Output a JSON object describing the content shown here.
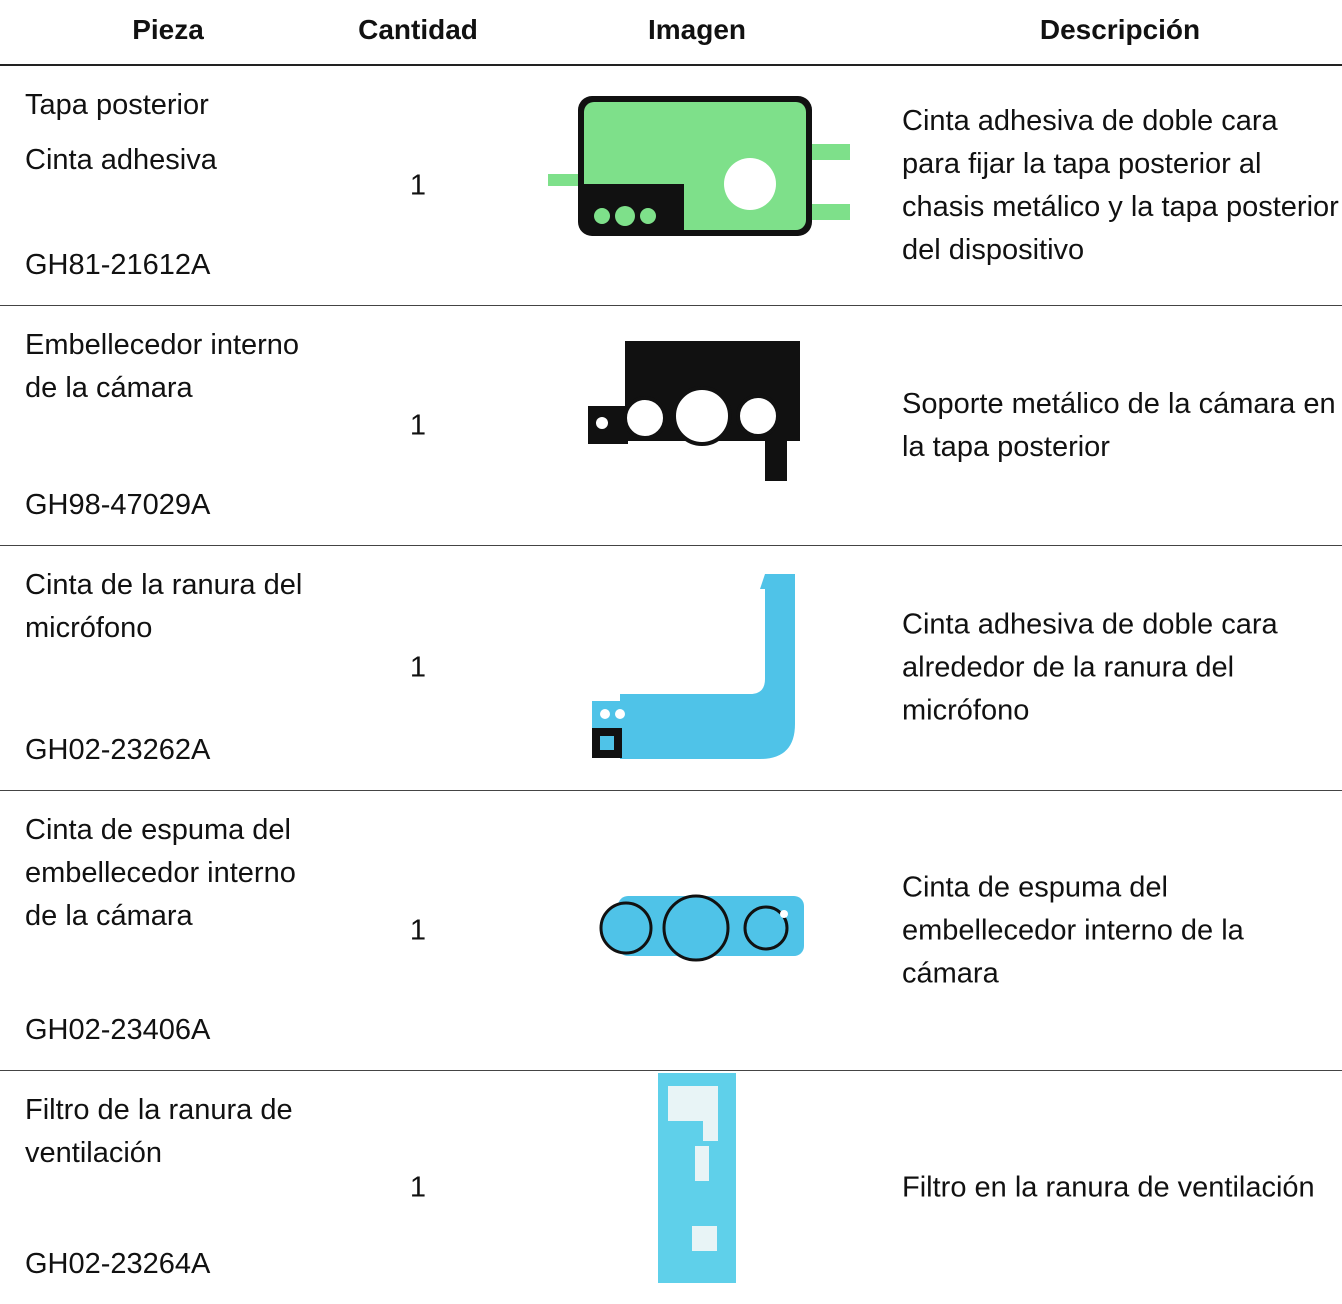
{
  "table": {
    "headers": [
      "Pieza",
      "Cantidad",
      "Imagen",
      "Descripción"
    ],
    "rows": [
      {
        "name": [
          "Tapa posterior",
          "Cinta adhesiva"
        ],
        "code": "GH81-21612A",
        "quantity": 1,
        "description": "Cinta adhesiva de doble cara para fijar la tapa posterior al chasis metálico y la tapa posterior del dispositivo"
      },
      {
        "name": [
          "Embellecedor interno de la cámara"
        ],
        "code": "GH98-47029A",
        "quantity": 1,
        "description": "Soporte metálico de la cámara en la tapa posterior"
      },
      {
        "name": [
          "Cinta de la ranura del micrófono"
        ],
        "code": "GH02-23262A",
        "quantity": 1,
        "description": "Cinta adhesiva de doble cara alrededor de la ranura del micrófono"
      },
      {
        "name": [
          "Cinta de espuma del embellecedor interno de la cámara"
        ],
        "code": "GH02-23406A",
        "quantity": 1,
        "description": "Cinta de espuma del embellecedor interno de la cámara"
      },
      {
        "name": [
          "Filtro de la ranura de ventilación"
        ],
        "code": "GH02-23264A",
        "quantity": 1,
        "description": "Filtro en la ranura de ventilación"
      }
    ]
  }
}
